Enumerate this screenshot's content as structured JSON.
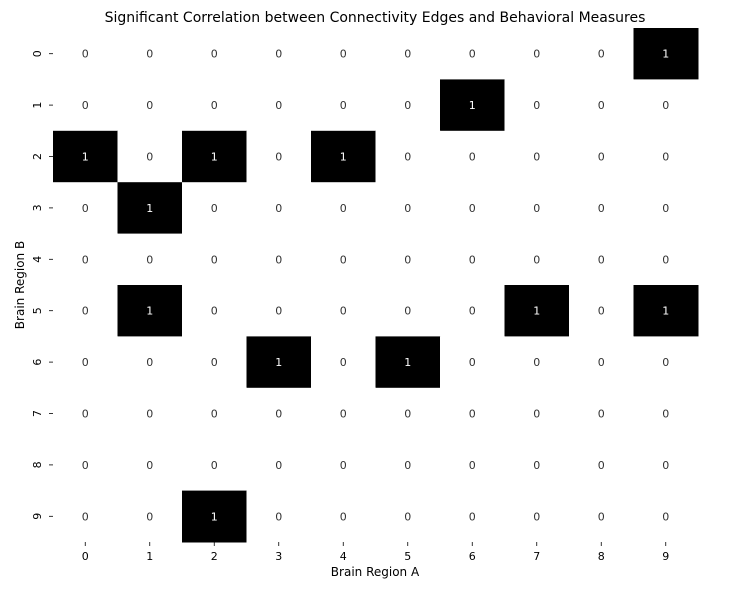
{
  "chart_data": {
    "type": "heatmap",
    "title": "Significant Correlation between Connectivity Edges and Behavioral Measures",
    "xlabel": "Brain Region A",
    "ylabel": "Brain Region B",
    "x_ticks": [
      "0",
      "1",
      "2",
      "3",
      "4",
      "5",
      "6",
      "7",
      "8",
      "9"
    ],
    "y_ticks": [
      "0",
      "1",
      "2",
      "3",
      "4",
      "5",
      "6",
      "7",
      "8",
      "9"
    ],
    "values": [
      [
        0,
        0,
        0,
        0,
        0,
        0,
        0,
        0,
        0,
        1
      ],
      [
        0,
        0,
        0,
        0,
        0,
        0,
        1,
        0,
        0,
        0
      ],
      [
        1,
        0,
        1,
        0,
        1,
        0,
        0,
        0,
        0,
        0
      ],
      [
        0,
        1,
        0,
        0,
        0,
        0,
        0,
        0,
        0,
        0
      ],
      [
        0,
        0,
        0,
        0,
        0,
        0,
        0,
        0,
        0,
        0
      ],
      [
        0,
        1,
        0,
        0,
        0,
        0,
        0,
        1,
        0,
        1
      ],
      [
        0,
        0,
        0,
        1,
        0,
        1,
        0,
        0,
        0,
        0
      ],
      [
        0,
        0,
        0,
        0,
        0,
        0,
        0,
        0,
        0,
        0
      ],
      [
        0,
        0,
        0,
        0,
        0,
        0,
        0,
        0,
        0,
        0
      ],
      [
        0,
        0,
        1,
        0,
        0,
        0,
        0,
        0,
        0,
        0
      ]
    ],
    "colormap": {
      "0": "#ffffff",
      "1": "#000000"
    },
    "annotations": true,
    "grid": false,
    "legend": "none"
  }
}
